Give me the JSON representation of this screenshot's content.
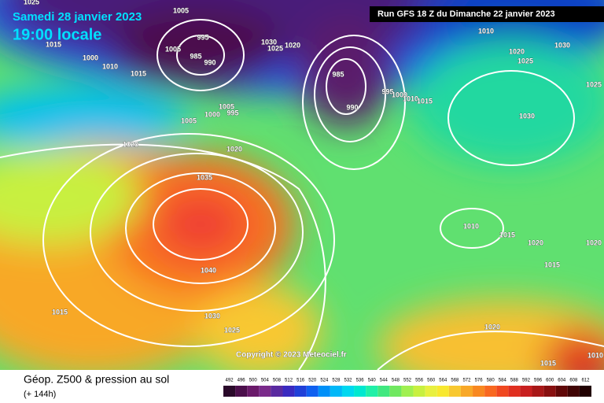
{
  "map": {
    "date_title": "Samedi 28 janvier 2023",
    "time_title": "19:00 locale",
    "run_info": "Run GFS 18 Z du Dimanche 22 janvier 2023",
    "copyright": "Copyright © 2023 Meteociel.fr",
    "legend_title": "Géop. Z500 & pression au sol",
    "legend_subtitle": "(+ 144h)",
    "scale": {
      "labels": [
        492,
        496,
        500,
        504,
        508,
        512,
        516,
        520,
        524,
        528,
        532,
        536,
        540,
        544,
        548,
        552,
        556,
        560,
        564,
        568,
        572,
        576,
        580,
        584,
        588,
        592,
        596,
        600,
        604,
        608,
        612
      ],
      "colors": [
        "#2a0a2a",
        "#4b0f4b",
        "#6a1a6a",
        "#7a2a8a",
        "#5a2aa0",
        "#3a2ac0",
        "#2040d8",
        "#1060f0",
        "#0090f8",
        "#00b8f8",
        "#00d8f0",
        "#00e8d0",
        "#20f0a8",
        "#40e880",
        "#70e860",
        "#a0f050",
        "#c8f040",
        "#e8f040",
        "#f8e830",
        "#f8c830",
        "#f8a828",
        "#f88820",
        "#f86820",
        "#f04820",
        "#e03020",
        "#c82020",
        "#a81818",
        "#881010",
        "#600808",
        "#400404",
        "#200000"
      ]
    },
    "pressure_labels": [
      1025,
      1005,
      995,
      1005,
      985,
      990,
      1015,
      1000,
      1010,
      1015,
      1030,
      1025,
      1020,
      985,
      990,
      995,
      1000,
      1010,
      1015,
      1010,
      1020,
      1025,
      1030,
      1025,
      1030,
      1005,
      1000,
      995,
      1005,
      1020,
      1020,
      1035,
      1040,
      1030,
      1025,
      1015,
      1010,
      1015,
      1020,
      1015,
      1020,
      1020,
      1015,
      1010
    ]
  }
}
